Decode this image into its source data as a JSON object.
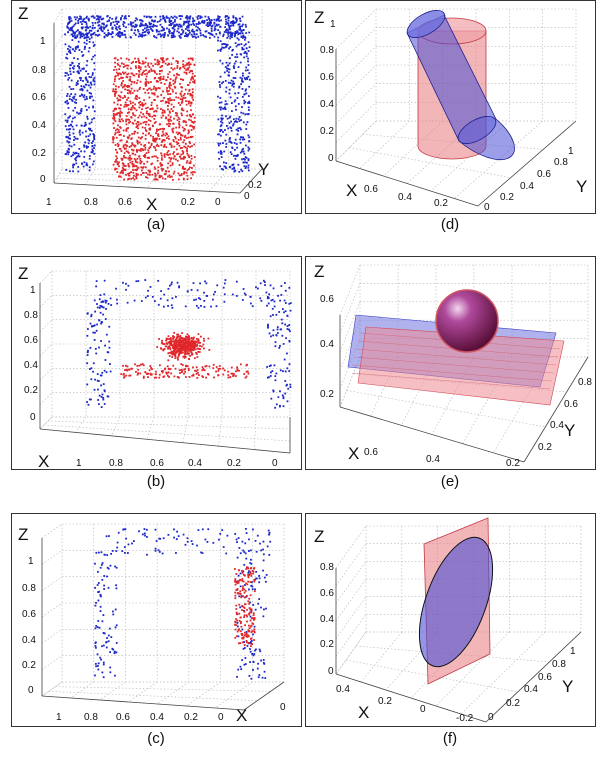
{
  "panels": [
    {
      "caption": "(a)",
      "axes": {
        "z": "Z",
        "x": "X",
        "y": "Y"
      },
      "z_ticks": [
        "1",
        "0.8",
        "0.6",
        "0.4",
        "0.2",
        "0"
      ],
      "x_ticks": [
        "1",
        "0.8",
        "0.6",
        "0.4",
        "0.2",
        "0"
      ],
      "y_ticks": [
        "0.2",
        "0"
      ]
    },
    {
      "caption": "(b)",
      "axes": {
        "z": "Z",
        "x": "X"
      },
      "z_ticks": [
        "1",
        "0.8",
        "0.6",
        "0.4",
        "0.2",
        "0"
      ],
      "x_ticks": [
        "1",
        "0.8",
        "0.6",
        "0.4",
        "0.2",
        "0"
      ]
    },
    {
      "caption": "(c)",
      "axes": {
        "z": "Z",
        "x": "X"
      },
      "z_ticks": [
        "1",
        "0.8",
        "0.6",
        "0.4",
        "0.2",
        "0"
      ],
      "x_ticks": [
        "1",
        "0.8",
        "0.6",
        "0.4",
        "0.2",
        "0"
      ],
      "y_ticks": [
        "0"
      ]
    },
    {
      "caption": "(d)",
      "axes": {
        "z": "Z",
        "x": "X",
        "y": "Y"
      },
      "z_ticks": [
        "1",
        "0.8",
        "0.6",
        "0.4",
        "0.2",
        "0"
      ],
      "x_ticks": [
        "0.6",
        "0.4",
        "0.2"
      ],
      "y_ticks": [
        "1",
        "0.8",
        "0.6",
        "0.4",
        "0.2",
        "0"
      ]
    },
    {
      "caption": "(e)",
      "axes": {
        "z": "Z",
        "x": "X",
        "y": "Y"
      },
      "z_ticks": [
        "0.6",
        "0.4",
        "0.2"
      ],
      "x_ticks": [
        "0.6",
        "0.4",
        "0.2"
      ],
      "y_ticks": [
        "0.8",
        "0.6",
        "0.4",
        "0.2"
      ]
    },
    {
      "caption": "(f)",
      "axes": {
        "z": "Z",
        "x": "X",
        "y": "Y"
      },
      "z_ticks": [
        "0.8",
        "0.6",
        "0.4",
        "0.2",
        "0"
      ],
      "x_ticks": [
        "0.4",
        "0.2",
        "0",
        "-0.2"
      ],
      "y_ticks": [
        "1",
        "0.8",
        "0.6",
        "0.4",
        "0.2",
        "0"
      ]
    }
  ],
  "colors": {
    "series_a": "#1c27c9",
    "series_b": "#e0262a",
    "fill_blue": "#4b4fd6",
    "fill_red": "#e87a80"
  },
  "chart_data": [
    {
      "type": "scatter",
      "panel": "(a)",
      "series": [
        "blue points forming inverted U frame",
        "red points filling central block"
      ]
    },
    {
      "type": "scatter",
      "panel": "(b)",
      "series": [
        "blue points forming inverted U frame",
        "red points forming a low mound"
      ]
    },
    {
      "type": "scatter",
      "panel": "(c)",
      "series": [
        "blue points forming inverted U frame",
        "red points along one vertical side"
      ]
    },
    {
      "type": "surface",
      "panel": "(d)",
      "shapes": [
        "tilted blue cylinder",
        "upright red cylinder"
      ]
    },
    {
      "type": "surface",
      "panel": "(e)",
      "shapes": [
        "sphere",
        "blue plane",
        "red plane"
      ]
    },
    {
      "type": "surface",
      "panel": "(f)",
      "shapes": [
        "tilted blue disc",
        "vertical red plane"
      ]
    }
  ]
}
